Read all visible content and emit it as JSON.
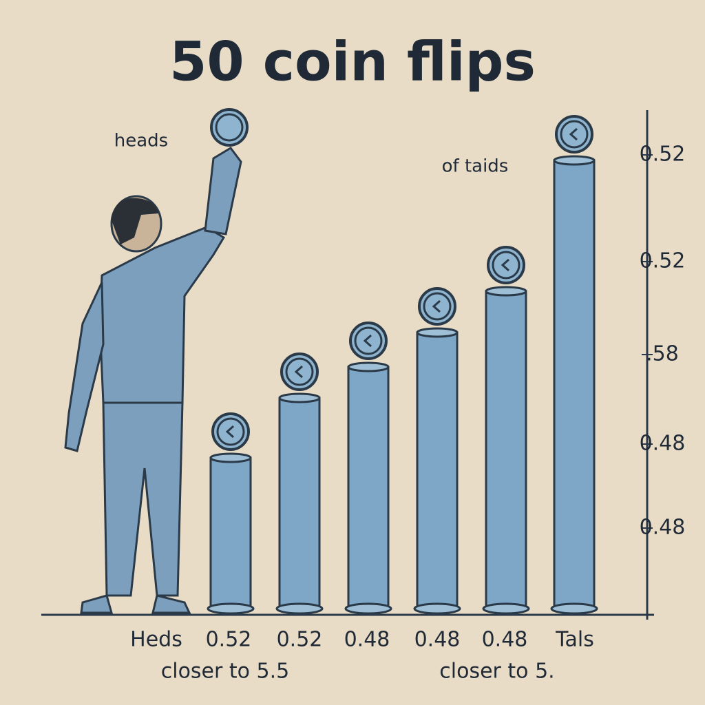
{
  "title": "50 coin flips",
  "annotations": {
    "left": "heads",
    "middle": "of taids"
  },
  "right_axis_labels": [
    "0.52",
    "0.52",
    ".58",
    "0.48",
    "0.48"
  ],
  "bottom_labels": [
    "Heds",
    "0.52",
    "0.52",
    "0.48",
    "0.48",
    "0.48",
    "Tals"
  ],
  "captions": [
    "closer to 5.5",
    "closer to 5."
  ]
}
